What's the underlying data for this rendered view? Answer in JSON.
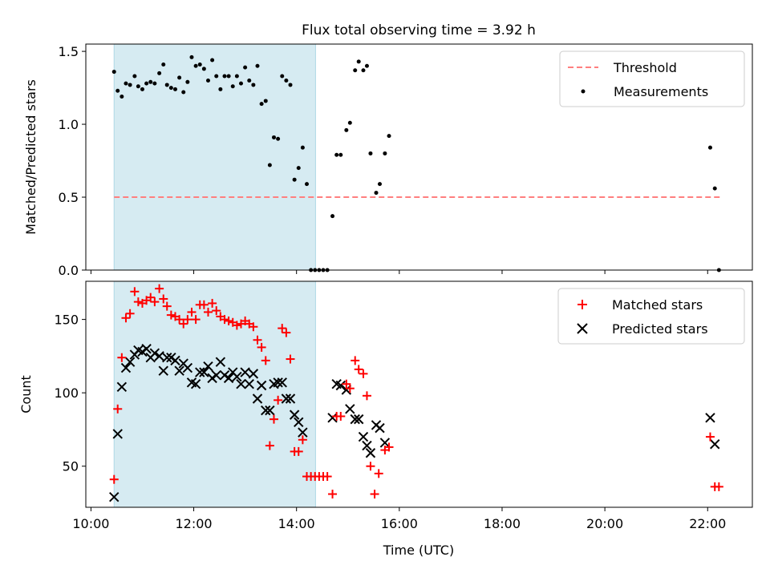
{
  "chart_data": [
    {
      "type": "scatter",
      "title": "Flux total observing time = 3.92 h",
      "ylabel": "Matched/Predicted stars",
      "xlabel": "",
      "xlim": [
        9.9,
        22.87
      ],
      "ylim": [
        0,
        1.55
      ],
      "yticks": [
        0,
        0.5,
        1.0,
        1.5
      ],
      "ytick_labels": [
        "0.0",
        "0.5",
        "1.0",
        "1.5"
      ],
      "grid": false,
      "legend_position": "top-right",
      "shaded_span": [
        10.45,
        14.37
      ],
      "threshold": {
        "name": "Threshold",
        "y": 0.5,
        "x": [
          10.45,
          22.25
        ],
        "color": "#ff7f7f",
        "style": "dashed"
      },
      "series": [
        {
          "name": "Measurements",
          "marker": "dot",
          "color": "#000000",
          "points": [
            [
              10.45,
              1.36
            ],
            [
              10.52,
              1.23
            ],
            [
              10.6,
              1.19
            ],
            [
              10.68,
              1.28
            ],
            [
              10.76,
              1.27
            ],
            [
              10.85,
              1.33
            ],
            [
              10.92,
              1.26
            ],
            [
              11.0,
              1.24
            ],
            [
              11.08,
              1.28
            ],
            [
              11.16,
              1.29
            ],
            [
              11.24,
              1.28
            ],
            [
              11.33,
              1.35
            ],
            [
              11.41,
              1.41
            ],
            [
              11.48,
              1.27
            ],
            [
              11.56,
              1.25
            ],
            [
              11.64,
              1.24
            ],
            [
              11.72,
              1.32
            ],
            [
              11.8,
              1.22
            ],
            [
              11.88,
              1.29
            ],
            [
              11.96,
              1.46
            ],
            [
              12.04,
              1.4
            ],
            [
              12.12,
              1.41
            ],
            [
              12.2,
              1.38
            ],
            [
              12.28,
              1.3
            ],
            [
              12.36,
              1.44
            ],
            [
              12.44,
              1.33
            ],
            [
              12.52,
              1.24
            ],
            [
              12.6,
              1.33
            ],
            [
              12.68,
              1.33
            ],
            [
              12.76,
              1.26
            ],
            [
              12.84,
              1.33
            ],
            [
              12.92,
              1.28
            ],
            [
              13.0,
              1.39
            ],
            [
              13.08,
              1.3
            ],
            [
              13.16,
              1.27
            ],
            [
              13.24,
              1.4
            ],
            [
              13.32,
              1.14
            ],
            [
              13.4,
              1.16
            ],
            [
              13.48,
              0.72
            ],
            [
              13.56,
              0.91
            ],
            [
              13.64,
              0.9
            ],
            [
              13.72,
              1.33
            ],
            [
              13.8,
              1.3
            ],
            [
              13.88,
              1.27
            ],
            [
              13.96,
              0.62
            ],
            [
              14.04,
              0.7
            ],
            [
              14.12,
              0.84
            ],
            [
              14.2,
              0.59
            ],
            [
              14.28,
              0.0
            ],
            [
              14.36,
              0.0
            ],
            [
              14.44,
              0.0
            ],
            [
              14.52,
              0.0
            ],
            [
              14.6,
              0.0
            ],
            [
              14.7,
              0.37
            ],
            [
              14.78,
              0.79
            ],
            [
              14.86,
              0.79
            ],
            [
              14.97,
              0.96
            ],
            [
              15.04,
              1.01
            ],
            [
              15.14,
              1.37
            ],
            [
              15.21,
              1.43
            ],
            [
              15.3,
              1.37
            ],
            [
              15.37,
              1.4
            ],
            [
              15.44,
              0.8
            ],
            [
              15.55,
              0.53
            ],
            [
              15.62,
              0.59
            ],
            [
              15.72,
              0.8
            ],
            [
              15.8,
              0.92
            ],
            [
              22.05,
              0.84
            ],
            [
              22.14,
              0.56
            ],
            [
              22.22,
              0.0
            ]
          ]
        }
      ]
    },
    {
      "type": "scatter",
      "title": "",
      "xlabel": "Time (UTC)",
      "ylabel": "Count",
      "xlim": [
        9.9,
        22.87
      ],
      "ylim": [
        22,
        176
      ],
      "xticks": [
        10,
        12,
        14,
        16,
        18,
        20,
        22
      ],
      "xtick_labels": [
        "10:00",
        "12:00",
        "14:00",
        "16:00",
        "18:00",
        "20:00",
        "22:00"
      ],
      "yticks": [
        50,
        100,
        150
      ],
      "ytick_labels": [
        "50",
        "100",
        "150"
      ],
      "grid": false,
      "legend_position": "top-right",
      "shaded_span": [
        10.45,
        14.37
      ],
      "series": [
        {
          "name": "Matched stars",
          "marker": "plus",
          "color": "#ff0000",
          "points": [
            [
              10.45,
              41
            ],
            [
              10.52,
              89
            ],
            [
              10.6,
              124
            ],
            [
              10.68,
              151
            ],
            [
              10.76,
              154
            ],
            [
              10.85,
              169
            ],
            [
              10.92,
              162
            ],
            [
              11.0,
              161
            ],
            [
              11.08,
              163
            ],
            [
              11.16,
              165
            ],
            [
              11.24,
              162
            ],
            [
              11.33,
              171
            ],
            [
              11.41,
              164
            ],
            [
              11.48,
              159
            ],
            [
              11.56,
              153
            ],
            [
              11.64,
              152
            ],
            [
              11.72,
              150
            ],
            [
              11.8,
              147
            ],
            [
              11.88,
              150
            ],
            [
              11.96,
              155
            ],
            [
              12.04,
              150
            ],
            [
              12.12,
              160
            ],
            [
              12.2,
              160
            ],
            [
              12.28,
              155
            ],
            [
              12.36,
              161
            ],
            [
              12.44,
              156
            ],
            [
              12.52,
              152
            ],
            [
              12.6,
              150
            ],
            [
              12.68,
              149
            ],
            [
              12.76,
              148
            ],
            [
              12.84,
              146
            ],
            [
              12.92,
              147
            ],
            [
              13.0,
              149
            ],
            [
              13.08,
              147
            ],
            [
              13.16,
              145
            ],
            [
              13.24,
              136
            ],
            [
              13.32,
              131
            ],
            [
              13.4,
              122
            ],
            [
              13.48,
              64
            ],
            [
              13.56,
              82
            ],
            [
              13.64,
              95
            ],
            [
              13.72,
              144
            ],
            [
              13.8,
              141
            ],
            [
              13.88,
              123
            ],
            [
              13.96,
              60
            ],
            [
              14.04,
              60
            ],
            [
              14.12,
              68
            ],
            [
              14.2,
              43
            ],
            [
              14.28,
              43
            ],
            [
              14.36,
              43
            ],
            [
              14.44,
              43
            ],
            [
              14.52,
              43
            ],
            [
              14.6,
              43
            ],
            [
              14.7,
              31
            ],
            [
              14.78,
              84
            ],
            [
              14.86,
              84
            ],
            [
              14.97,
              106
            ],
            [
              15.04,
              103
            ],
            [
              15.14,
              122
            ],
            [
              15.21,
              116
            ],
            [
              15.3,
              113
            ],
            [
              15.37,
              98
            ],
            [
              15.44,
              50
            ],
            [
              15.52,
              31
            ],
            [
              15.6,
              45
            ],
            [
              15.72,
              61
            ],
            [
              15.8,
              63
            ],
            [
              22.05,
              70
            ],
            [
              22.14,
              36
            ],
            [
              22.22,
              36
            ]
          ]
        },
        {
          "name": "Predicted stars",
          "marker": "x",
          "color": "#000000",
          "points": [
            [
              10.45,
              29
            ],
            [
              10.52,
              72
            ],
            [
              10.6,
              104
            ],
            [
              10.68,
              117
            ],
            [
              10.76,
              121
            ],
            [
              10.85,
              126
            ],
            [
              10.92,
              129
            ],
            [
              11.0,
              128
            ],
            [
              11.08,
              130
            ],
            [
              11.16,
              124
            ],
            [
              11.24,
              127
            ],
            [
              11.33,
              125
            ],
            [
              11.41,
              115
            ],
            [
              11.48,
              124
            ],
            [
              11.56,
              124
            ],
            [
              11.64,
              122
            ],
            [
              11.72,
              115
            ],
            [
              11.8,
              120
            ],
            [
              11.88,
              117
            ],
            [
              11.96,
              107
            ],
            [
              12.04,
              106
            ],
            [
              12.12,
              114
            ],
            [
              12.2,
              114
            ],
            [
              12.28,
              118
            ],
            [
              12.36,
              110
            ],
            [
              12.44,
              112
            ],
            [
              12.52,
              121
            ],
            [
              12.6,
              112
            ],
            [
              12.68,
              110
            ],
            [
              12.76,
              114
            ],
            [
              12.84,
              111
            ],
            [
              12.92,
              106
            ],
            [
              13.0,
              114
            ],
            [
              13.08,
              106
            ],
            [
              13.16,
              113
            ],
            [
              13.24,
              96
            ],
            [
              13.32,
              105
            ],
            [
              13.4,
              88
            ],
            [
              13.48,
              88
            ],
            [
              13.56,
              106
            ],
            [
              13.64,
              107
            ],
            [
              13.72,
              107
            ],
            [
              13.8,
              96
            ],
            [
              13.88,
              96
            ],
            [
              13.96,
              85
            ],
            [
              14.04,
              80
            ],
            [
              14.12,
              73
            ],
            [
              14.7,
              83
            ],
            [
              14.78,
              106
            ],
            [
              14.86,
              105
            ],
            [
              14.97,
              102
            ],
            [
              15.04,
              89
            ],
            [
              15.14,
              82
            ],
            [
              15.21,
              82
            ],
            [
              15.3,
              70
            ],
            [
              15.37,
              64
            ],
            [
              15.44,
              59
            ],
            [
              15.55,
              78
            ],
            [
              15.62,
              76
            ],
            [
              15.72,
              66
            ],
            [
              22.05,
              83
            ],
            [
              22.14,
              65
            ]
          ]
        }
      ]
    }
  ]
}
